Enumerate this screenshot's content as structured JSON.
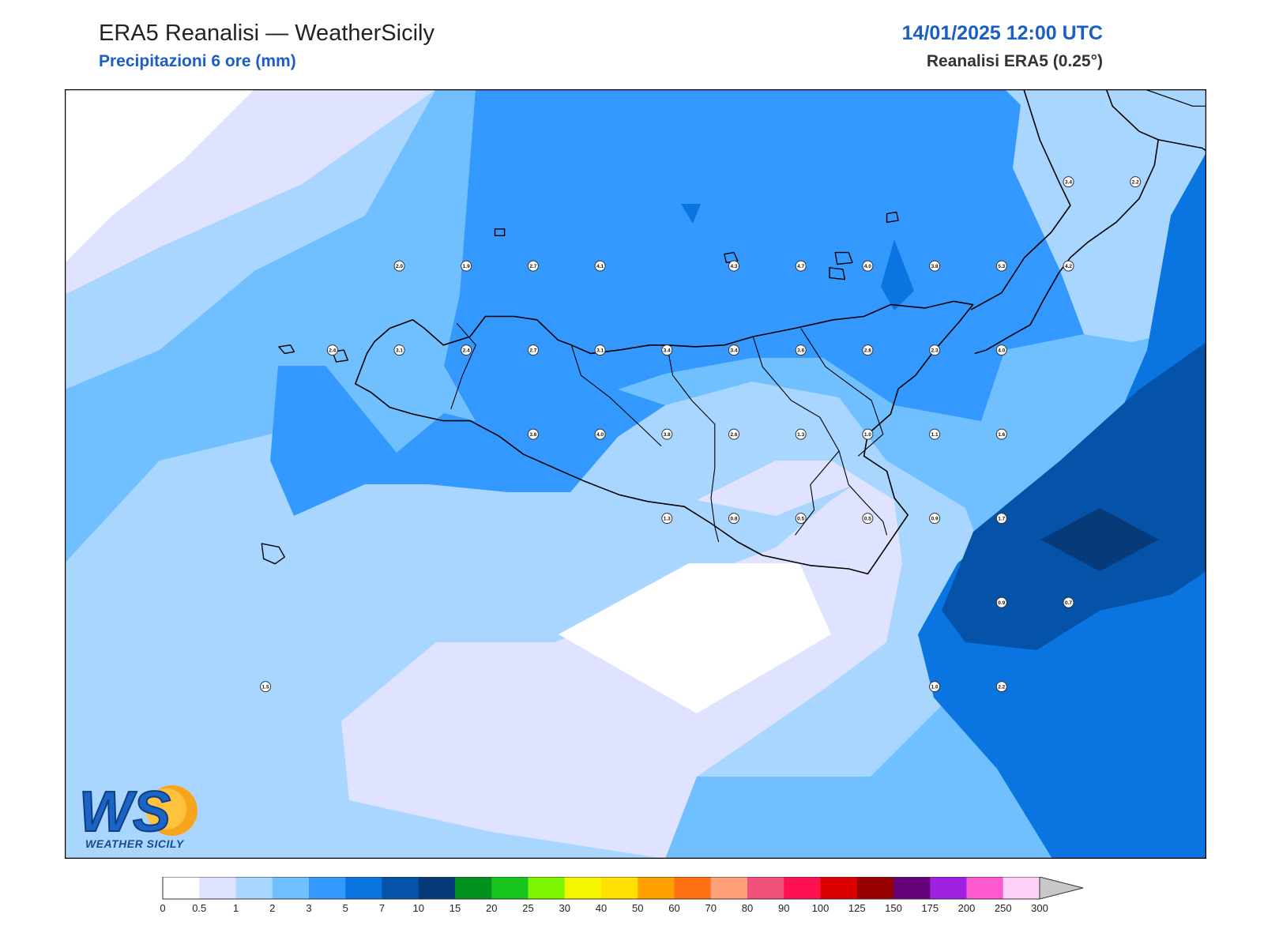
{
  "header": {
    "title": "ERA5 Reanalisi — WeatherSicily",
    "subtitle": "Precipitazioni 6 ore (mm)",
    "datetime": "14/01/2025 12:00 UTC",
    "source": "Reanalisi ERA5 (0.25°)"
  },
  "logo": {
    "letters": "WS",
    "text": "WEATHER SICILY"
  },
  "colorbar": {
    "labels": [
      "0",
      "0.5",
      "1",
      "2",
      "3",
      "5",
      "7",
      "10",
      "15",
      "20",
      "25",
      "30",
      "40",
      "50",
      "60",
      "70",
      "80",
      "90",
      "100",
      "125",
      "150",
      "175",
      "200",
      "250",
      "300"
    ],
    "colors": [
      "#ffffff",
      "#e0e3ff",
      "#a9d6ff",
      "#70bfff",
      "#3399ff",
      "#0a75e0",
      "#0553a8",
      "#063a78",
      "#00901e",
      "#16c41d",
      "#7cf500",
      "#f5f500",
      "#ffe000",
      "#ff9f00",
      "#ff7014",
      "#ffa07a",
      "#f0507a",
      "#ff1050",
      "#dc0000",
      "#960000",
      "#640078",
      "#a020e0",
      "#ff5ad0",
      "#ffd0f5"
    ],
    "overflow_color": "#c8c8c8"
  },
  "stations": [
    {
      "label": "2.0",
      "lon": 12.65,
      "lat": 38.5
    },
    {
      "label": "1.9",
      "lon": 13.0,
      "lat": 38.5
    },
    {
      "label": "2.7",
      "lon": 13.35,
      "lat": 38.5
    },
    {
      "label": "4.1",
      "lon": 13.7,
      "lat": 38.5
    },
    {
      "label": "4.3",
      "lon": 14.4,
      "lat": 38.5
    },
    {
      "label": "4.7",
      "lon": 14.75,
      "lat": 38.5
    },
    {
      "label": "4.0",
      "lon": 15.1,
      "lat": 38.5
    },
    {
      "label": "3.8",
      "lon": 15.45,
      "lat": 38.5
    },
    {
      "label": "5.3",
      "lon": 15.8,
      "lat": 38.5
    },
    {
      "label": "4.2",
      "lon": 16.15,
      "lat": 38.5
    },
    {
      "label": "3.4",
      "lon": 16.15,
      "lat": 39.0
    },
    {
      "label": "2.2",
      "lon": 16.5,
      "lat": 39.0
    },
    {
      "label": "2.4",
      "lon": 12.3,
      "lat": 38.0
    },
    {
      "label": "3.1",
      "lon": 12.65,
      "lat": 38.0
    },
    {
      "label": "2.4",
      "lon": 13.0,
      "lat": 38.0
    },
    {
      "label": "2.7",
      "lon": 13.35,
      "lat": 38.0
    },
    {
      "label": "3.1",
      "lon": 13.7,
      "lat": 38.0
    },
    {
      "label": "3.4",
      "lon": 14.05,
      "lat": 38.0
    },
    {
      "label": "3.4",
      "lon": 14.4,
      "lat": 38.0
    },
    {
      "label": "3.6",
      "lon": 14.75,
      "lat": 38.0
    },
    {
      "label": "2.8",
      "lon": 15.1,
      "lat": 38.0
    },
    {
      "label": "2.3",
      "lon": 15.45,
      "lat": 38.0
    },
    {
      "label": "4.0",
      "lon": 15.8,
      "lat": 38.0
    },
    {
      "label": "3.6",
      "lon": 13.35,
      "lat": 37.5
    },
    {
      "label": "4.0",
      "lon": 13.7,
      "lat": 37.5
    },
    {
      "label": "3.8",
      "lon": 14.05,
      "lat": 37.5
    },
    {
      "label": "2.6",
      "lon": 14.4,
      "lat": 37.5
    },
    {
      "label": "1.3",
      "lon": 14.75,
      "lat": 37.5
    },
    {
      "label": "1.0",
      "lon": 15.1,
      "lat": 37.5
    },
    {
      "label": "1.1",
      "lon": 15.45,
      "lat": 37.5
    },
    {
      "label": "1.6",
      "lon": 15.8,
      "lat": 37.5
    },
    {
      "label": "1.3",
      "lon": 14.05,
      "lat": 37.0
    },
    {
      "label": "0.8",
      "lon": 14.4,
      "lat": 37.0
    },
    {
      "label": "0.5",
      "lon": 14.75,
      "lat": 37.0
    },
    {
      "label": "0.5",
      "lon": 15.1,
      "lat": 37.0
    },
    {
      "label": "0.9",
      "lon": 15.45,
      "lat": 37.0
    },
    {
      "label": "1.7",
      "lon": 15.8,
      "lat": 37.0
    },
    {
      "label": "0.9",
      "lon": 15.8,
      "lat": 36.5
    },
    {
      "label": "0.7",
      "lon": 16.15,
      "lat": 36.5
    },
    {
      "label": "1.0",
      "lon": 15.45,
      "lat": 36.0
    },
    {
      "label": "2.2",
      "lon": 15.8,
      "lat": 36.0
    },
    {
      "label": "1.5",
      "lon": 11.95,
      "lat": 36.0
    }
  ]
}
